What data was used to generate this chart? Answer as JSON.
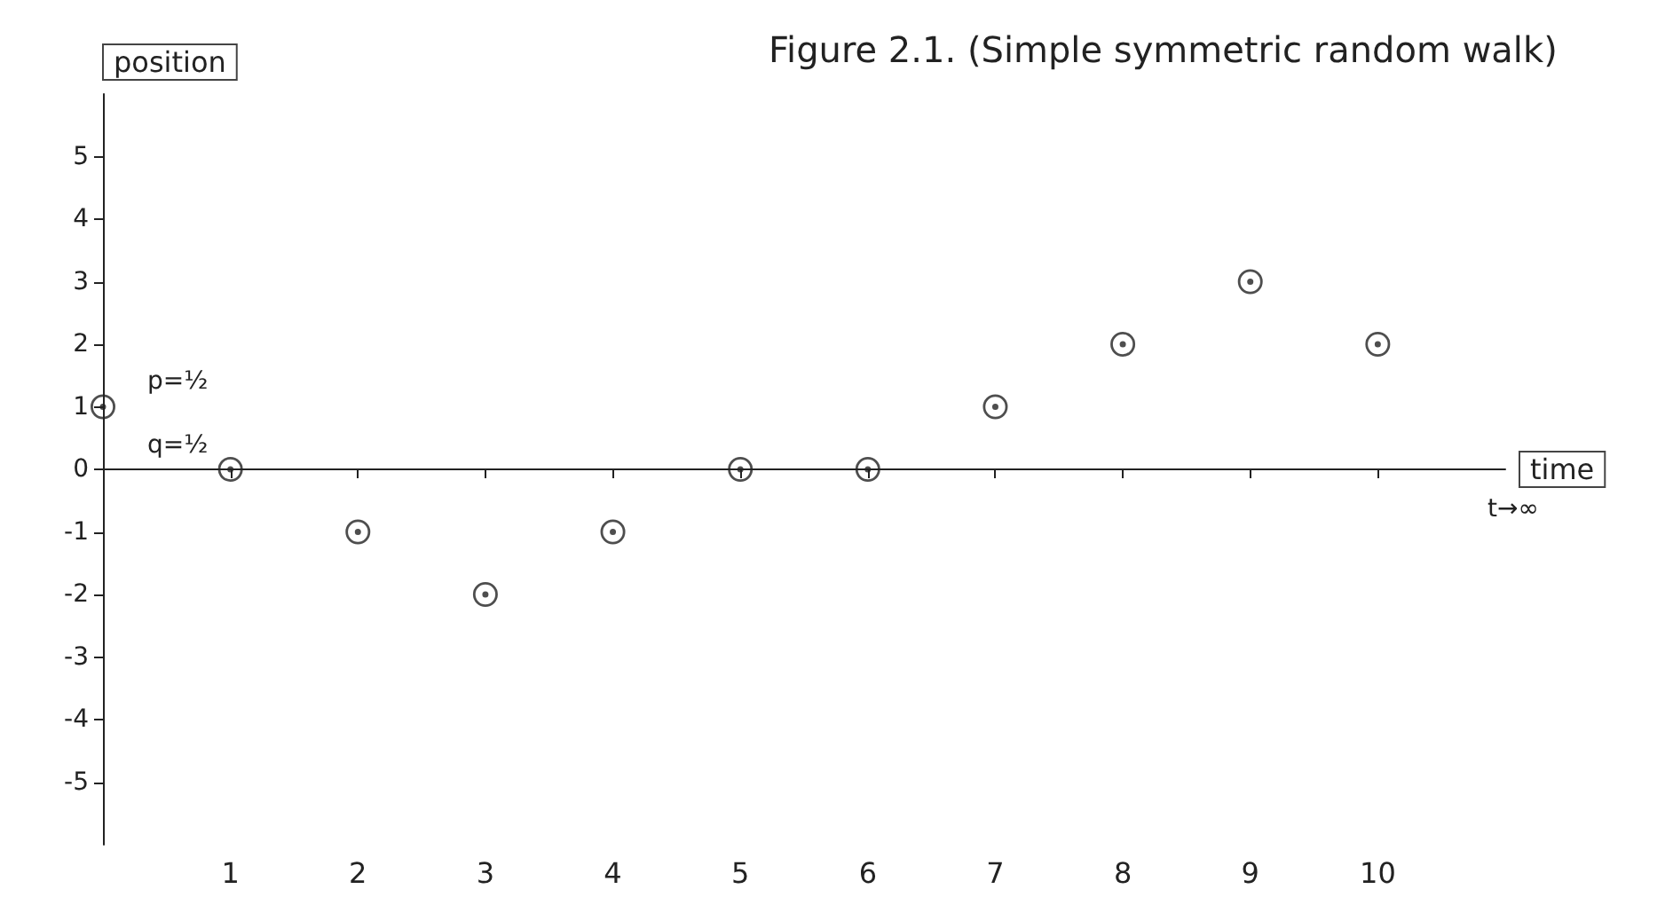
{
  "chart_data": {
    "type": "scatter",
    "title": "Figure 2.1. (Simple symmetric random walk)",
    "xlabel": "time",
    "ylabel": "position",
    "x": [
      0,
      1,
      2,
      3,
      4,
      5,
      6,
      7,
      8,
      9,
      10
    ],
    "series": [
      {
        "color": "#222222",
        "values": [
          1,
          0,
          -1,
          -2,
          -1,
          0,
          0,
          1,
          2,
          3,
          2
        ]
      }
    ],
    "xlim": [
      0,
      11
    ],
    "ylim": [
      -6,
      6
    ],
    "xticks": [
      1,
      2,
      3,
      4,
      5,
      6,
      7,
      8,
      9,
      10
    ],
    "yticks": [
      -5,
      -4,
      -3,
      -2,
      -1,
      0,
      1,
      2,
      3,
      4,
      5
    ],
    "annotations": [
      "p=½",
      "q=½",
      "t→∞"
    ],
    "marker": "circle"
  }
}
